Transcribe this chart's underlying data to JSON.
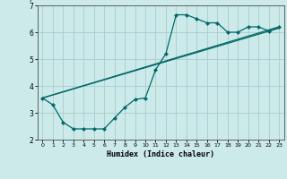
{
  "title": "",
  "xlabel": "Humidex (Indice chaleur)",
  "ylabel": "",
  "background_color": "#cceaea",
  "grid_color": "#aacccc",
  "line_color": "#006868",
  "xlim": [
    -0.5,
    23.5
  ],
  "ylim": [
    2,
    7
  ],
  "yticks": [
    2,
    3,
    4,
    5,
    6,
    7
  ],
  "xticks": [
    0,
    1,
    2,
    3,
    4,
    5,
    6,
    7,
    8,
    9,
    10,
    11,
    12,
    13,
    14,
    15,
    16,
    17,
    18,
    19,
    20,
    21,
    22,
    23
  ],
  "series": [
    {
      "x": [
        0,
        1,
        2,
        3,
        4,
        5,
        6,
        7,
        8,
        9,
        10,
        11,
        12,
        13,
        14,
        15,
        16,
        17,
        18,
        19,
        20,
        21,
        22,
        23
      ],
      "y": [
        3.55,
        3.3,
        2.65,
        2.4,
        2.4,
        2.4,
        2.4,
        2.8,
        3.2,
        3.5,
        3.55,
        4.6,
        5.2,
        6.65,
        6.65,
        6.5,
        6.35,
        6.35,
        6.0,
        6.0,
        6.2,
        6.2,
        6.05,
        6.2
      ],
      "markers": true
    },
    {
      "x": [
        0,
        23
      ],
      "y": [
        3.55,
        6.2
      ],
      "markers": false
    },
    {
      "x": [
        0,
        23
      ],
      "y": [
        3.55,
        6.2
      ],
      "markers": false
    }
  ],
  "straight_lines": [
    {
      "x": [
        0,
        23
      ],
      "y": [
        3.55,
        6.2
      ]
    },
    {
      "x": [
        0,
        23
      ],
      "y": [
        3.55,
        6.15
      ]
    }
  ]
}
